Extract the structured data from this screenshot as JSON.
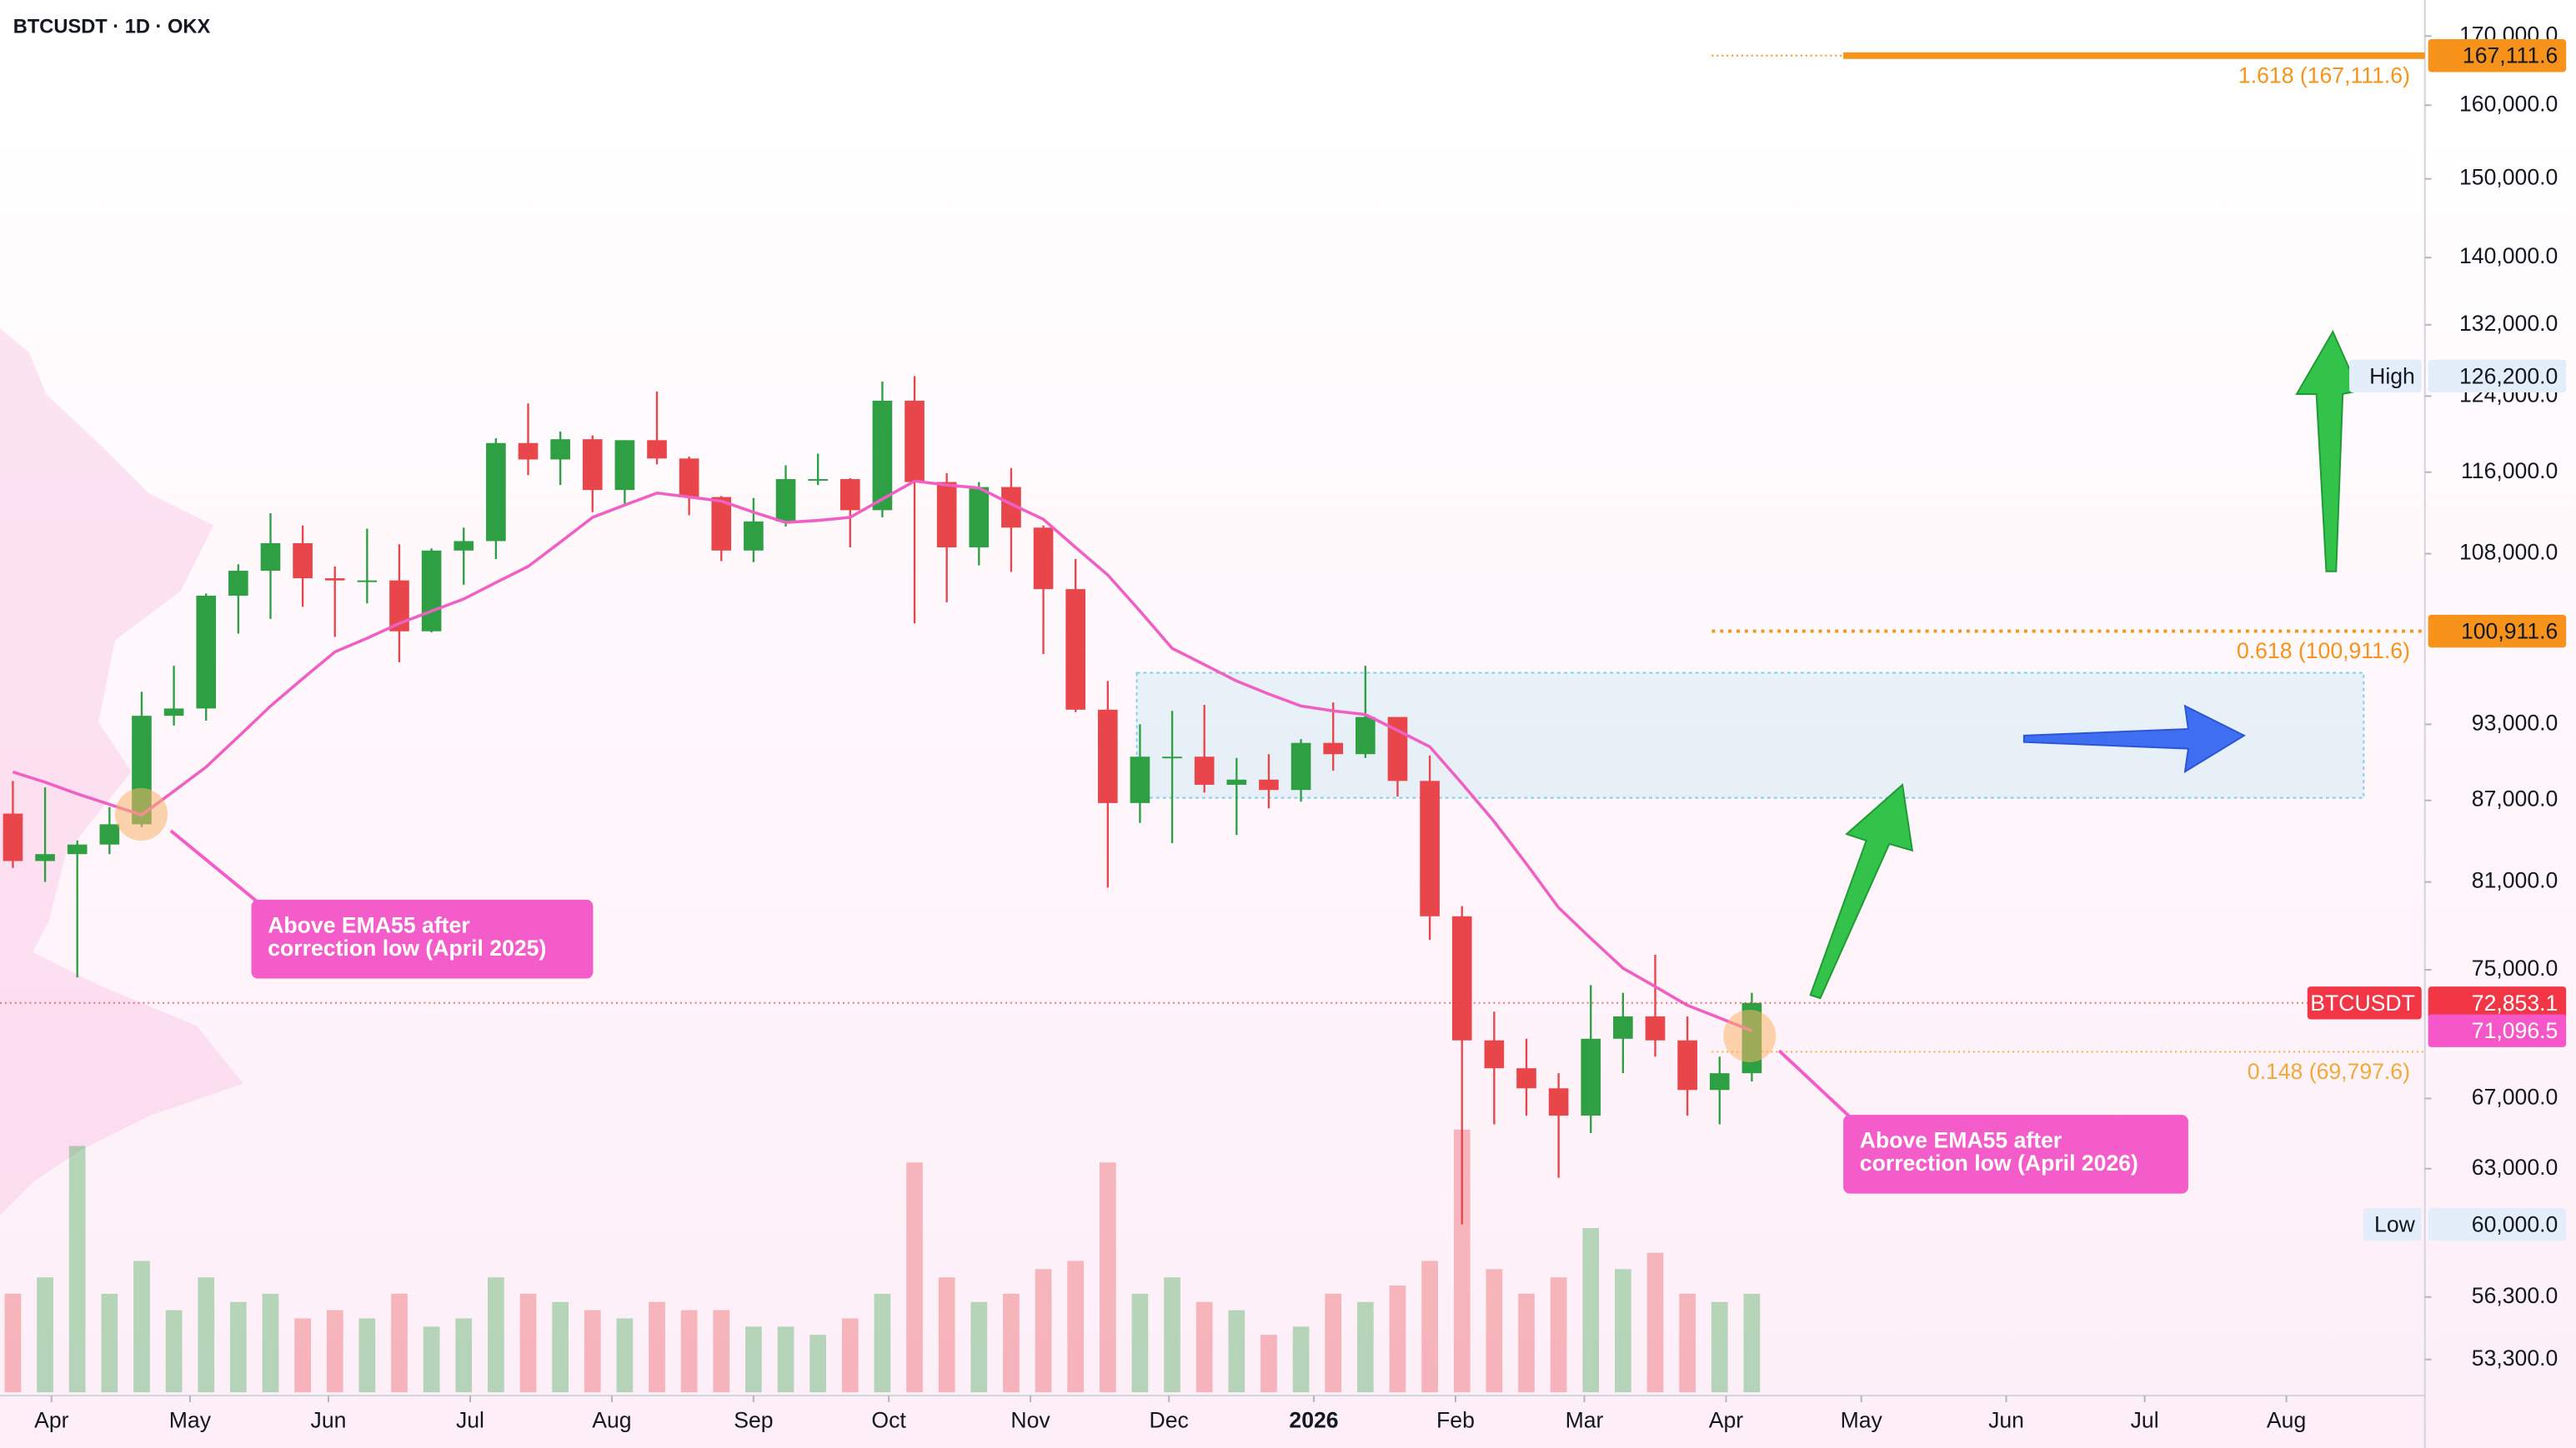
{
  "chart_data": {
    "type": "candlestick",
    "title": "BTCUSDT · 1D · OKX",
    "log_scale": true,
    "ylim": [
      51790,
      175460
    ],
    "yticks": [
      {
        "value": 170000,
        "label": "170,000.0"
      },
      {
        "value": 160000,
        "label": "160,000.0"
      },
      {
        "value": 150000,
        "label": "150,000.0"
      },
      {
        "value": 140000,
        "label": "140,000.0"
      },
      {
        "value": 132000,
        "label": "132,000.0"
      },
      {
        "value": 124000,
        "label": "124,000.0"
      },
      {
        "value": 116000,
        "label": "116,000.0"
      },
      {
        "value": 108000,
        "label": "108,000.0"
      },
      {
        "value": 93000,
        "label": "93,000.0"
      },
      {
        "value": 87000,
        "label": "87,000.0"
      },
      {
        "value": 81000,
        "label": "81,000.0"
      },
      {
        "value": 75000,
        "label": "75,000.0"
      },
      {
        "value": 67000,
        "label": "67,000.0"
      },
      {
        "value": 63000,
        "label": "63,000.0"
      },
      {
        "value": 56300,
        "label": "56,300.0"
      },
      {
        "value": 53300,
        "label": "53,300.0"
      }
    ],
    "xlim": [
      -0.4,
      74.9
    ],
    "xticks": [
      {
        "value": 1.2,
        "label": "Apr"
      },
      {
        "value": 5.5,
        "label": "May"
      },
      {
        "value": 9.8,
        "label": "Jun"
      },
      {
        "value": 14.2,
        "label": "Jul"
      },
      {
        "value": 18.6,
        "label": "Aug"
      },
      {
        "value": 23.0,
        "label": "Sep"
      },
      {
        "value": 27.2,
        "label": "Oct"
      },
      {
        "value": 31.6,
        "label": "Nov"
      },
      {
        "value": 35.9,
        "label": "Dec"
      },
      {
        "value": 40.4,
        "label": "2026"
      },
      {
        "value": 44.8,
        "label": "Feb"
      },
      {
        "value": 48.8,
        "label": "Mar"
      },
      {
        "value": 53.2,
        "label": "Apr"
      },
      {
        "value": 57.4,
        "label": "May"
      },
      {
        "value": 61.9,
        "label": "Jun"
      },
      {
        "value": 66.2,
        "label": "Jul"
      },
      {
        "value": 70.6,
        "label": "Aug"
      }
    ],
    "series": [
      {
        "name": "BTCUSDT",
        "up_color": "#2ea043",
        "down_color": "#e8464b",
        "open": [
          86000,
          82500,
          83000,
          83700,
          85200,
          93700,
          94300,
          104100,
          106400,
          109000,
          105700,
          105500,
          105500,
          100900,
          108300,
          109200,
          119000,
          117300,
          119400,
          114200,
          119300,
          117400,
          113500,
          108300,
          111100,
          115300,
          115300,
          112200,
          123500,
          115000,
          108600,
          114500,
          110500,
          104700,
          94200,
          86800,
          90400,
          90400,
          88200,
          88600,
          87800,
          91500,
          90600,
          93600,
          88500,
          78600,
          70500,
          68800,
          67600,
          66000,
          70600,
          72000,
          70500,
          67500,
          68500
        ],
        "high": [
          88500,
          88000,
          84000,
          86500,
          95700,
          97900,
          104300,
          107000,
          111900,
          110700,
          106800,
          110400,
          108900,
          108500,
          110500,
          119500,
          123200,
          120200,
          119800,
          119300,
          124500,
          117600,
          113600,
          113400,
          116700,
          117900,
          115400,
          125600,
          126200,
          115900,
          115000,
          116400,
          110700,
          107500,
          96600,
          93000,
          94100,
          94600,
          90300,
          90600,
          91800,
          94800,
          97900,
          93600,
          90500,
          79300,
          72300,
          70600,
          68500,
          74000,
          73500,
          76000,
          72000,
          69500,
          73500
        ],
        "low": [
          82000,
          81000,
          74500,
          83000,
          85000,
          92900,
          93300,
          100700,
          102000,
          103100,
          100400,
          103400,
          98200,
          100800,
          105100,
          107500,
          115700,
          114700,
          112000,
          112600,
          116800,
          111700,
          107300,
          107200,
          110600,
          114700,
          108600,
          111500,
          101600,
          103500,
          106900,
          106300,
          98900,
          94000,
          80600,
          85300,
          83800,
          87600,
          84400,
          86400,
          86900,
          89300,
          90300,
          87300,
          77000,
          60000,
          65500,
          66000,
          62500,
          65000,
          68500,
          69500,
          66000,
          65500,
          68000
        ],
        "close": [
          82500,
          83000,
          83700,
          85200,
          93700,
          94300,
          104100,
          106400,
          109000,
          105700,
          105500,
          105500,
          100900,
          108300,
          109200,
          119000,
          117300,
          119400,
          114200,
          119300,
          117400,
          113500,
          108300,
          111100,
          115300,
          115300,
          112200,
          123500,
          115000,
          108600,
          114500,
          110500,
          104700,
          94200,
          86800,
          90400,
          90400,
          88200,
          88600,
          87800,
          91500,
          90600,
          93600,
          88500,
          78600,
          70500,
          68800,
          67600,
          66000,
          70600,
          72000,
          70500,
          67500,
          68500,
          72853.1
        ],
        "volume": [
          60,
          70,
          150,
          60,
          80,
          50,
          70,
          55,
          60,
          45,
          50,
          45,
          60,
          40,
          45,
          70,
          60,
          55,
          50,
          45,
          55,
          50,
          50,
          40,
          40,
          35,
          45,
          60,
          140,
          70,
          55,
          60,
          75,
          80,
          140,
          60,
          70,
          55,
          50,
          35,
          40,
          60,
          55,
          65,
          80,
          160,
          75,
          60,
          70,
          100,
          75,
          85,
          60,
          55,
          60
        ]
      },
      {
        "name": "EMA55",
        "color": "#ef5fc4",
        "values": [
          89200,
          88400,
          87500,
          86700,
          85900,
          87700,
          89600,
          92000,
          94500,
          96800,
          99100,
          100300,
          101600,
          102700,
          103800,
          105300,
          106800,
          109100,
          111500,
          112700,
          113900,
          113500,
          113100,
          112000,
          111000,
          111200,
          111500,
          113300,
          115100,
          114700,
          114400,
          112800,
          111300,
          108600,
          106000,
          102700,
          99400,
          98000,
          96600,
          95500,
          94500,
          94100,
          93800,
          92500,
          91200,
          88300,
          85400,
          82300,
          79200,
          77100,
          75100,
          73900,
          72700,
          71900,
          71096.5
        ]
      }
    ],
    "levels": [
      {
        "value": 167111.6,
        "label": "1.618 (167,111.6)",
        "color": "#f7931a"
      },
      {
        "value": 100911.6,
        "label": "0.618 (100,911.6)",
        "color": "#f7931a"
      },
      {
        "value": 69797.6,
        "label": "0.148 (69,797.6)",
        "color": "#f2a93b"
      }
    ],
    "zone": {
      "x": [
        34.9,
        73.0
      ],
      "y": [
        87200,
        97300
      ],
      "color": "#7fd0e8"
    },
    "price_badges": [
      {
        "value": 167111.6,
        "label": "167,111.6",
        "color": "#f7931a",
        "text_color": "#131722"
      },
      {
        "value": 100911.6,
        "label": "100,911.6",
        "color": "#f7931a",
        "text_color": "#131722"
      },
      {
        "value": 126200,
        "label": "126,200.0",
        "name": "High",
        "color": "#e3eefa",
        "text_color": "#131722"
      },
      {
        "value": 72853.1,
        "label": "72,853.1",
        "name": "BTCUSDT",
        "color": "#f23645",
        "text_color": "#ffffff"
      },
      {
        "value": 71096.5,
        "label": "71,096.5",
        "color": "#f557c8",
        "text_color": "#ffffff"
      },
      {
        "value": 60000,
        "label": "60,000.0",
        "name": "Low",
        "color": "#e3eefa",
        "text_color": "#131722"
      }
    ],
    "annotations": [
      {
        "text": "Above EMA55 after correction low (April 2025)"
      },
      {
        "text": "Above EMA55 after correction low (April 2026)"
      }
    ]
  }
}
